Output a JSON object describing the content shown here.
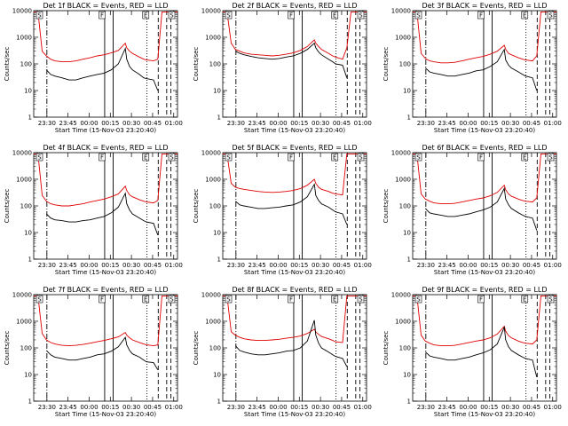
{
  "figure": {
    "panels": [
      {
        "title": "Det 1f BLACK = Events, RED = LLD",
        "detector": "1f"
      },
      {
        "title": "Det 2f BLACK = Events, RED = LLD",
        "detector": "2f"
      },
      {
        "title": "Det 3f BLACK = Events, RED = LLD",
        "detector": "3f"
      },
      {
        "title": "Det 4f BLACK = Events, RED = LLD",
        "detector": "4f"
      },
      {
        "title": "Det 5f BLACK = Events, RED = LLD",
        "detector": "5f"
      },
      {
        "title": "Det 6f BLACK = Events, RED = LLD",
        "detector": "6f"
      },
      {
        "title": "Det 7f BLACK = Events, RED = LLD",
        "detector": "7f"
      },
      {
        "title": "Det 8f BLACK = Events, RED = LLD",
        "detector": "8f"
      },
      {
        "title": "Det 9f BLACK = Events, RED = LLD",
        "detector": "9f"
      }
    ]
  },
  "chart_data": {
    "type": "line",
    "layout": "3x3 small multiples, one panel per detector",
    "xlabel": "Start Time (15-Nov-03 23:20:40)",
    "ylabel": "Counts/sec",
    "x_ticks": [
      "23:30",
      "23:45",
      "00:00",
      "00:15",
      "00:30",
      "00:45",
      "01:00"
    ],
    "x_range_minutes_after_23_20_40": [
      0,
      102
    ],
    "y_scale": "log",
    "y_range": [
      1,
      10000
    ],
    "y_ticks": [
      "1",
      "10",
      "100",
      "1000",
      "10000"
    ],
    "grid": false,
    "legend": "none (series identified in title: BLACK = Events, RED = LLD)",
    "series": [
      {
        "name": "Events",
        "color": "#000000"
      },
      {
        "name": "LLD",
        "color": "#e00000"
      }
    ],
    "corner_markers": [
      "S",
      "F",
      "E",
      "S"
    ],
    "time_axis_minutes": [
      0,
      3,
      6,
      9,
      12,
      15,
      20,
      25,
      30,
      35,
      40,
      45,
      50,
      55,
      60,
      65,
      66,
      68,
      70,
      75,
      78,
      80,
      85,
      88,
      91,
      94,
      97,
      100,
      102
    ],
    "panels": [
      {
        "detector": "1f",
        "LLD": [
          9000,
          9000,
          300,
          200,
          150,
          130,
          120,
          120,
          130,
          150,
          170,
          200,
          220,
          260,
          320,
          600,
          400,
          300,
          250,
          180,
          150,
          140,
          130,
          150,
          9000,
          9000,
          9000,
          9000,
          9000
        ],
        "Events": [
          null,
          null,
          null,
          60,
          40,
          35,
          30,
          25,
          25,
          30,
          35,
          40,
          45,
          60,
          100,
          380,
          150,
          80,
          60,
          40,
          30,
          28,
          25,
          10,
          null,
          null,
          null,
          null,
          null
        ]
      },
      {
        "detector": "2f",
        "LLD": [
          9000,
          9000,
          600,
          350,
          300,
          260,
          230,
          220,
          210,
          200,
          210,
          230,
          260,
          320,
          450,
          800,
          600,
          450,
          350,
          250,
          200,
          180,
          150,
          400,
          9000,
          9000,
          9000,
          9000,
          9000
        ],
        "Events": [
          null,
          null,
          null,
          300,
          250,
          220,
          190,
          170,
          160,
          150,
          160,
          180,
          200,
          250,
          350,
          600,
          400,
          280,
          220,
          150,
          120,
          100,
          90,
          30,
          null,
          null,
          null,
          null,
          null
        ]
      },
      {
        "detector": "3f",
        "LLD": [
          9000,
          9000,
          250,
          160,
          130,
          120,
          110,
          110,
          115,
          130,
          150,
          170,
          190,
          230,
          300,
          500,
          350,
          250,
          220,
          170,
          150,
          140,
          130,
          200,
          9000,
          9000,
          9000,
          9000,
          9000
        ],
        "Events": [
          null,
          null,
          null,
          70,
          50,
          45,
          40,
          35,
          35,
          40,
          45,
          55,
          60,
          80,
          120,
          350,
          140,
          90,
          70,
          50,
          40,
          35,
          30,
          10,
          null,
          null,
          null,
          null,
          null
        ]
      },
      {
        "detector": "4f",
        "LLD": [
          9000,
          9000,
          250,
          150,
          120,
          110,
          100,
          100,
          110,
          120,
          140,
          160,
          180,
          220,
          280,
          550,
          380,
          260,
          220,
          170,
          150,
          140,
          130,
          160,
          9000,
          9000,
          9000,
          9000,
          9000
        ],
        "Events": [
          null,
          null,
          null,
          50,
          35,
          30,
          28,
          25,
          25,
          28,
          30,
          35,
          40,
          55,
          90,
          300,
          120,
          70,
          50,
          35,
          28,
          25,
          22,
          8,
          null,
          null,
          null,
          null,
          null
        ]
      },
      {
        "detector": "5f",
        "LLD": [
          9000,
          9000,
          700,
          500,
          450,
          420,
          380,
          350,
          330,
          320,
          330,
          350,
          380,
          450,
          600,
          1000,
          700,
          500,
          420,
          350,
          300,
          280,
          260,
          9000,
          9000,
          9000,
          9000,
          9000,
          9000
        ],
        "Events": [
          null,
          null,
          null,
          150,
          110,
          100,
          90,
          80,
          80,
          85,
          90,
          100,
          110,
          140,
          220,
          650,
          250,
          160,
          120,
          90,
          70,
          60,
          50,
          20,
          null,
          null,
          null,
          null,
          null
        ]
      },
      {
        "detector": "6f",
        "LLD": [
          9000,
          9000,
          280,
          180,
          150,
          130,
          120,
          120,
          125,
          140,
          160,
          180,
          200,
          240,
          320,
          600,
          400,
          280,
          230,
          180,
          160,
          150,
          140,
          200,
          9000,
          9000,
          9000,
          9000,
          9000
        ],
        "Events": [
          null,
          null,
          null,
          80,
          55,
          50,
          45,
          40,
          40,
          45,
          50,
          60,
          70,
          90,
          140,
          450,
          180,
          110,
          80,
          55,
          45,
          40,
          35,
          12,
          null,
          null,
          null,
          null,
          null
        ]
      },
      {
        "detector": "7f",
        "LLD": [
          9000,
          9000,
          350,
          200,
          160,
          140,
          125,
          120,
          125,
          135,
          150,
          170,
          190,
          220,
          260,
          380,
          300,
          240,
          200,
          160,
          140,
          130,
          120,
          130,
          9000,
          9000,
          9000,
          9000,
          9000
        ],
        "Events": [
          null,
          null,
          null,
          80,
          55,
          45,
          40,
          35,
          35,
          40,
          45,
          55,
          60,
          75,
          110,
          250,
          130,
          80,
          60,
          45,
          35,
          30,
          28,
          15,
          null,
          null,
          null,
          null,
          null
        ]
      },
      {
        "detector": "8f",
        "LLD": [
          9000,
          9000,
          400,
          300,
          250,
          220,
          200,
          190,
          190,
          200,
          210,
          230,
          250,
          280,
          350,
          500,
          400,
          320,
          270,
          220,
          190,
          170,
          160,
          9000,
          9000,
          9000,
          9000,
          9000,
          9000
        ],
        "Events": [
          null,
          null,
          null,
          120,
          80,
          70,
          60,
          55,
          55,
          60,
          65,
          75,
          80,
          100,
          180,
          1100,
          300,
          150,
          100,
          70,
          55,
          48,
          40,
          20,
          null,
          null,
          null,
          null,
          null
        ]
      },
      {
        "detector": "9f",
        "LLD": [
          9000,
          9000,
          300,
          180,
          150,
          130,
          120,
          120,
          125,
          140,
          160,
          180,
          200,
          240,
          330,
          650,
          420,
          290,
          240,
          180,
          160,
          150,
          140,
          200,
          9000,
          9000,
          9000,
          9000,
          9000
        ],
        "Events": [
          null,
          null,
          null,
          70,
          50,
          45,
          40,
          35,
          35,
          40,
          45,
          55,
          65,
          85,
          140,
          600,
          200,
          110,
          80,
          55,
          45,
          40,
          35,
          8,
          null,
          null,
          null,
          null,
          null
        ]
      }
    ],
    "vertical_markers": [
      {
        "style": "dash-dot",
        "time": "23:30"
      },
      {
        "style": "solid",
        "time": "00:11"
      },
      {
        "style": "solid",
        "time": "00:17"
      },
      {
        "style": "dotted",
        "time": "00:41"
      },
      {
        "style": "dashed",
        "time": "00:49"
      },
      {
        "style": "dashed",
        "time": "00:55"
      },
      {
        "style": "dashed",
        "time": "00:58"
      }
    ]
  }
}
